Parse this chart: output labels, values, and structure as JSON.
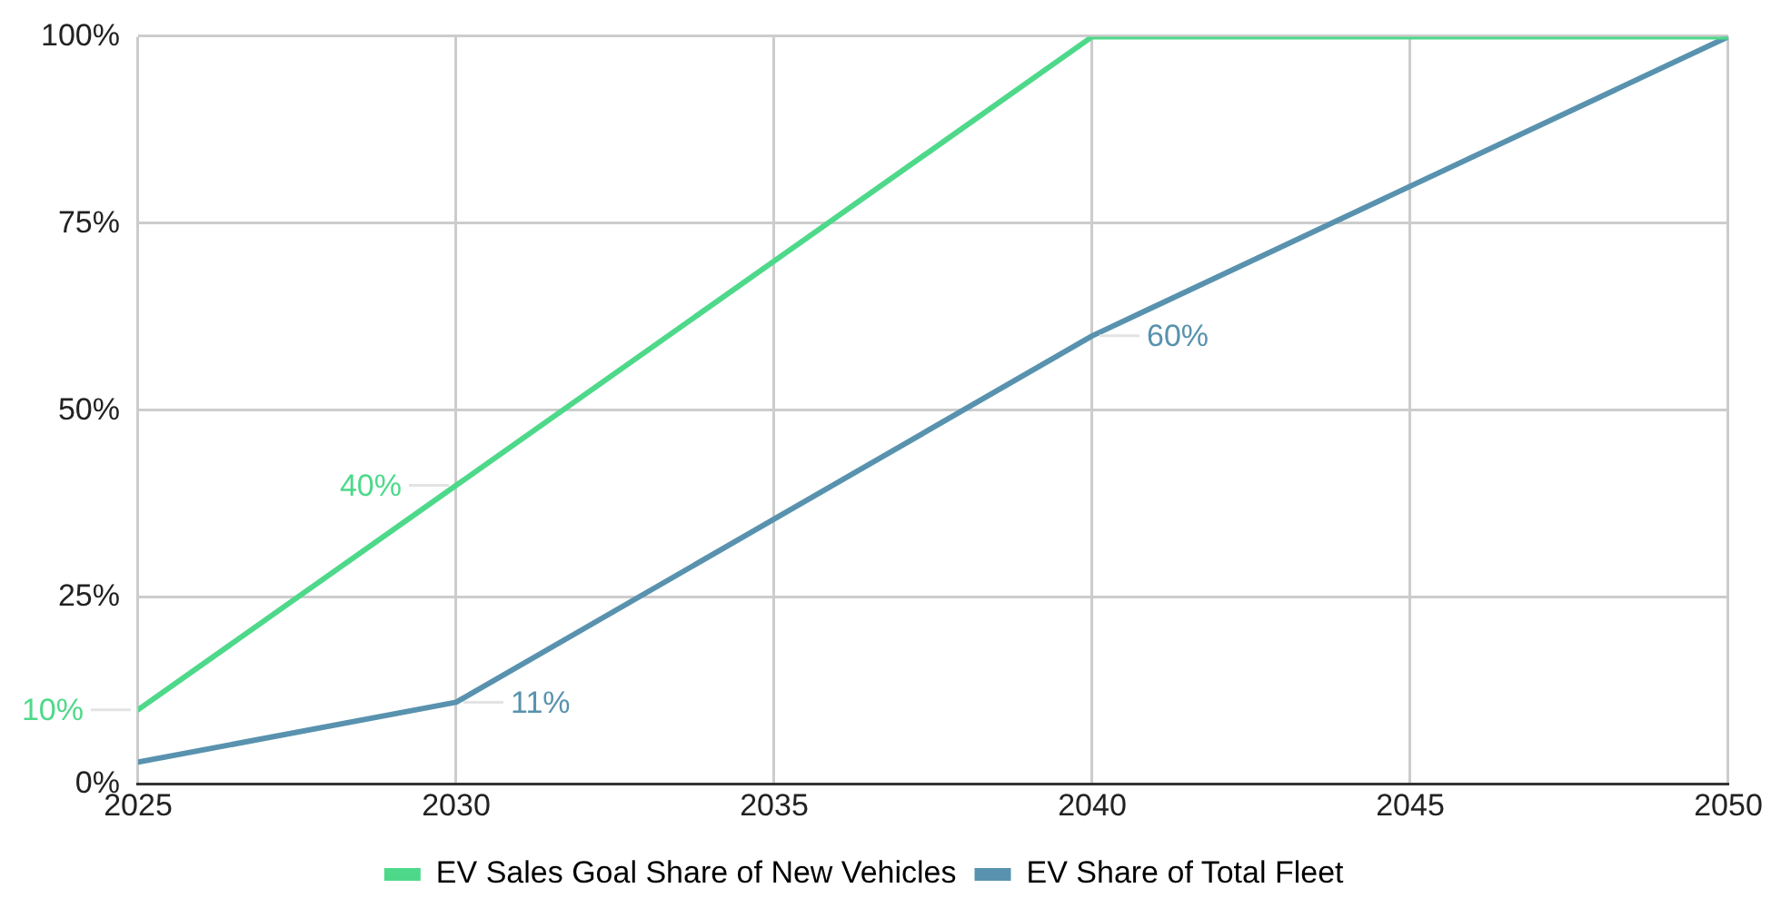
{
  "chart_data": {
    "type": "line",
    "x": [
      2025,
      2030,
      2040,
      2050
    ],
    "series": [
      {
        "name": "EV Sales Goal Share of New Vehicles",
        "color": "#4ed98a",
        "values": [
          10,
          40,
          100,
          100
        ],
        "value_labels": [
          "10%",
          "40%",
          null,
          null
        ]
      },
      {
        "name": "EV Share of Total Fleet",
        "color": "#5892ae",
        "values": [
          3,
          11,
          60,
          100
        ],
        "value_labels": [
          null,
          "11%",
          "60%",
          null
        ]
      }
    ],
    "xlim": [
      2025,
      2050
    ],
    "xticks": [
      2025,
      2030,
      2035,
      2040,
      2045,
      2050
    ],
    "ylim": [
      0,
      100
    ],
    "yticks": [
      {
        "value": 0,
        "label": "0%"
      },
      {
        "value": 25,
        "label": "25%"
      },
      {
        "value": 50,
        "label": "50%"
      },
      {
        "value": 75,
        "label": "75%"
      },
      {
        "value": 100,
        "label": "100%"
      }
    ],
    "grid": true,
    "legend": "bottom",
    "marker": "none",
    "line_style": "solid"
  }
}
